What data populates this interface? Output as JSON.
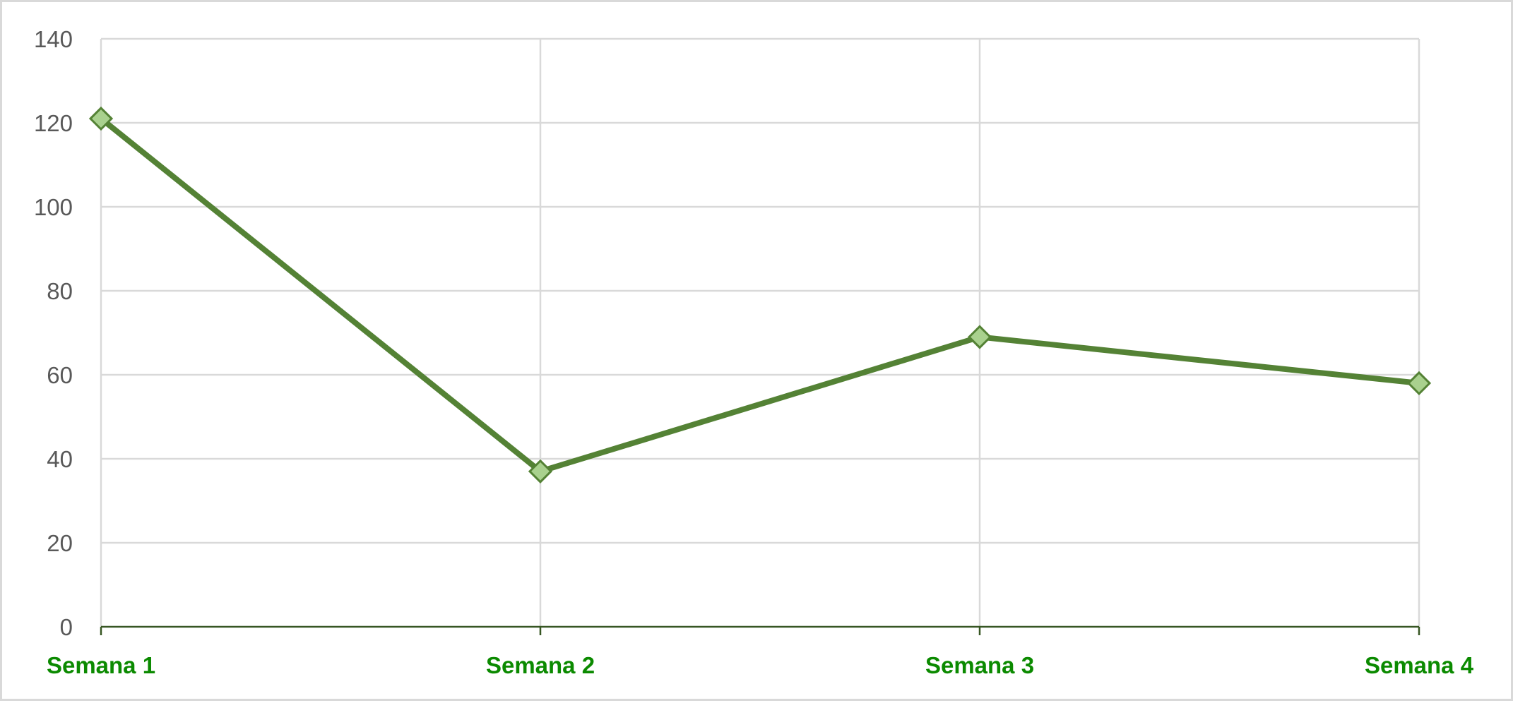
{
  "chart_data": {
    "type": "line",
    "categories": [
      "Semana 1",
      "Semana 2",
      "Semana 3",
      "Semana 4"
    ],
    "series": [
      {
        "values": [
          121,
          37,
          69,
          58
        ]
      }
    ],
    "y_ticks": [
      "0",
      "20",
      "40",
      "60",
      "80",
      "100",
      "120",
      "140"
    ],
    "ylim": [
      0,
      140
    ],
    "xlabel": "",
    "ylabel": "",
    "grid": true,
    "legend": "none",
    "colors": {
      "line": "#548235",
      "marker_fill": "#a9d18e",
      "marker_stroke": "#548235",
      "x_label": "#0b8a00",
      "y_label": "#595959",
      "grid": "#d9d9d9",
      "x_axis": "#375623"
    }
  }
}
